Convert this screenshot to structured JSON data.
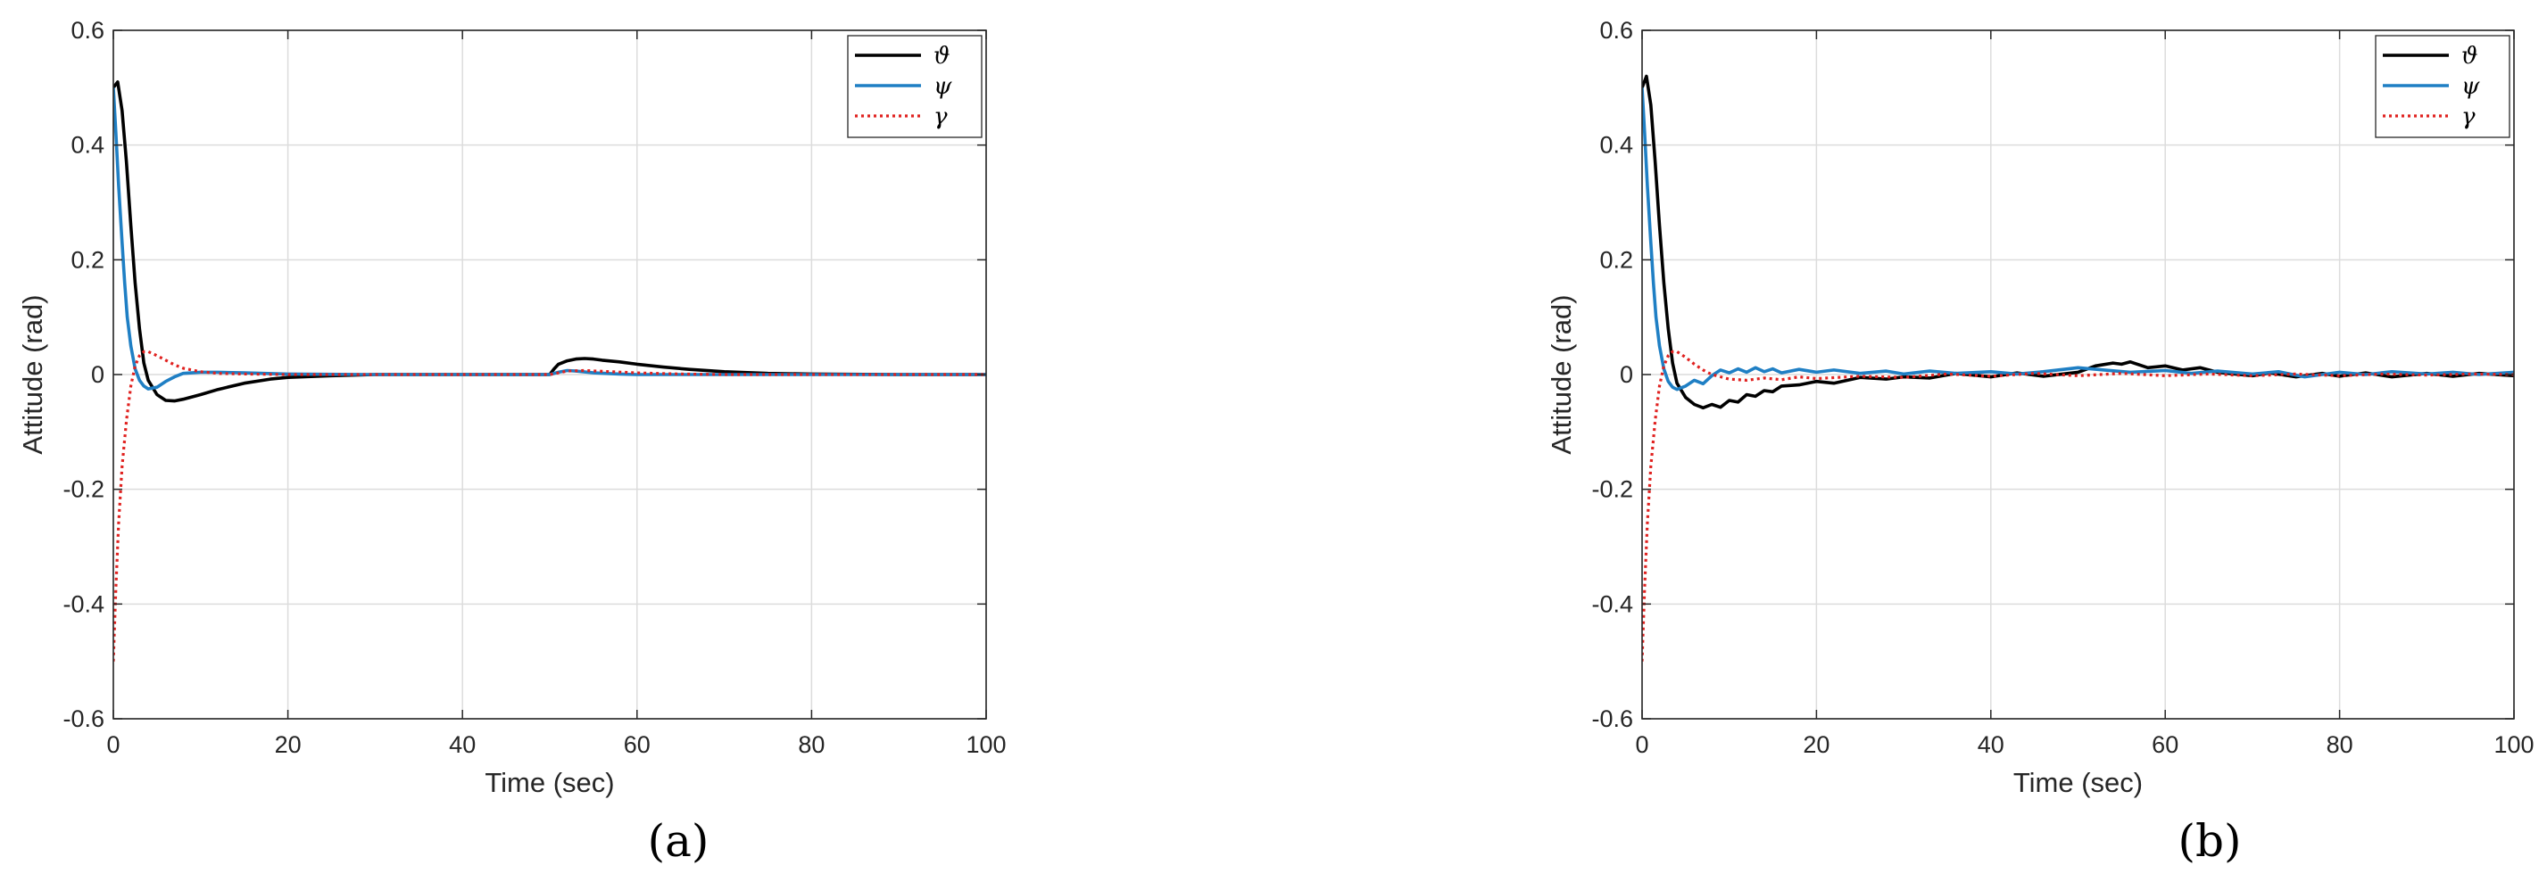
{
  "chart_data": [
    {
      "type": "line",
      "panel_label": "(a)",
      "xlabel": "Time (sec)",
      "ylabel": "Attitude (rad)",
      "xlim": [
        0,
        100
      ],
      "ylim": [
        -0.6,
        0.6
      ],
      "xticks": [
        0,
        20,
        40,
        60,
        80,
        100
      ],
      "yticks": [
        -0.6,
        -0.4,
        -0.2,
        0,
        0.2,
        0.4,
        0.6
      ],
      "xtick_labels": [
        "0",
        "20",
        "40",
        "60",
        "80",
        "100"
      ],
      "ytick_labels": [
        "-0.6",
        "-0.4",
        "-0.2",
        "0",
        "0.2",
        "0.4",
        "0.6"
      ],
      "grid": true,
      "legend_position": "top-right",
      "series": [
        {
          "name": "ϑ",
          "color": "#000000",
          "style": "solid",
          "x": [
            0,
            0.5,
            1,
            1.5,
            2,
            2.5,
            3,
            3.5,
            4,
            5,
            6,
            7,
            8,
            10,
            12,
            15,
            18,
            20,
            25,
            30,
            40,
            50,
            50.5,
            51,
            52,
            53,
            54,
            55,
            56,
            58,
            60,
            63,
            66,
            70,
            75,
            80,
            90,
            100
          ],
          "y": [
            0.5,
            0.51,
            0.46,
            0.37,
            0.26,
            0.16,
            0.08,
            0.02,
            -0.01,
            -0.035,
            -0.045,
            -0.046,
            -0.043,
            -0.035,
            -0.026,
            -0.015,
            -0.008,
            -0.005,
            -0.002,
            0,
            0,
            0,
            0.01,
            0.018,
            0.024,
            0.027,
            0.028,
            0.027,
            0.025,
            0.022,
            0.018,
            0.013,
            0.009,
            0.005,
            0.002,
            0.001,
            0,
            0
          ]
        },
        {
          "name": "ψ",
          "color": "#1f7fc4",
          "style": "solid",
          "x": [
            0,
            0.3,
            0.6,
            1,
            1.3,
            1.6,
            2,
            2.5,
            3,
            3.5,
            4,
            5,
            6,
            7,
            8,
            10,
            12,
            15,
            20,
            30,
            50,
            51,
            52,
            53,
            55,
            58,
            60,
            70,
            100
          ],
          "y": [
            0.5,
            0.42,
            0.33,
            0.23,
            0.16,
            0.1,
            0.05,
            0.01,
            -0.01,
            -0.02,
            -0.025,
            -0.022,
            -0.012,
            -0.004,
            0.002,
            0.004,
            0.004,
            0.003,
            0.001,
            0,
            0,
            0.004,
            0.007,
            0.006,
            0.003,
            0.001,
            0,
            0,
            0
          ]
        },
        {
          "name": "γ",
          "color": "#e0211f",
          "style": "dotted",
          "x": [
            0,
            0.3,
            0.6,
            1,
            1.5,
            2,
            2.5,
            3,
            3.5,
            4,
            5,
            6,
            7,
            8,
            10,
            12,
            15,
            20,
            30,
            50,
            51,
            52,
            54,
            57,
            60,
            65,
            70,
            100
          ],
          "y": [
            -0.5,
            -0.37,
            -0.26,
            -0.16,
            -0.08,
            -0.02,
            0.015,
            0.033,
            0.04,
            0.04,
            0.033,
            0.025,
            0.017,
            0.011,
            0.005,
            0.002,
            0.001,
            0,
            0,
            0,
            0.003,
            0.006,
            0.007,
            0.005,
            0.003,
            0.001,
            0,
            0
          ]
        }
      ]
    },
    {
      "type": "line",
      "panel_label": "(b)",
      "xlabel": "Time (sec)",
      "ylabel": "Attitude (rad)",
      "xlim": [
        0,
        100
      ],
      "ylim": [
        -0.6,
        0.6
      ],
      "xticks": [
        0,
        20,
        40,
        60,
        80,
        100
      ],
      "yticks": [
        -0.6,
        -0.4,
        -0.2,
        0,
        0.2,
        0.4,
        0.6
      ],
      "xtick_labels": [
        "0",
        "20",
        "40",
        "60",
        "80",
        "100"
      ],
      "ytick_labels": [
        "-0.6",
        "-0.4",
        "-0.2",
        "0",
        "0.2",
        "0.4",
        "0.6"
      ],
      "grid": true,
      "legend_position": "top-right",
      "series": [
        {
          "name": "ϑ",
          "color": "#000000",
          "style": "solid",
          "x": [
            0,
            0.5,
            1,
            1.5,
            2,
            2.5,
            3,
            3.5,
            4,
            5,
            6,
            7,
            8,
            9,
            10,
            11,
            12,
            13,
            14,
            15,
            16,
            18,
            20,
            22,
            25,
            28,
            30,
            33,
            36,
            40,
            43,
            46,
            50,
            52,
            54,
            55,
            56,
            58,
            60,
            62,
            64,
            66,
            70,
            72,
            75,
            78,
            80,
            83,
            86,
            90,
            93,
            96,
            100
          ],
          "y": [
            0.5,
            0.52,
            0.47,
            0.37,
            0.26,
            0.16,
            0.08,
            0.02,
            -0.015,
            -0.04,
            -0.052,
            -0.058,
            -0.052,
            -0.057,
            -0.045,
            -0.048,
            -0.035,
            -0.038,
            -0.028,
            -0.03,
            -0.02,
            -0.018,
            -0.012,
            -0.015,
            -0.005,
            -0.008,
            -0.004,
            -0.006,
            0.002,
            -0.004,
            0.003,
            -0.003,
            0.004,
            0.015,
            0.02,
            0.018,
            0.022,
            0.012,
            0.015,
            0.008,
            0.012,
            0.004,
            -0.002,
            0.003,
            -0.004,
            0.002,
            -0.003,
            0.003,
            -0.004,
            0.002,
            -0.003,
            0.002,
            -0.002
          ]
        },
        {
          "name": "ψ",
          "color": "#1f7fc4",
          "style": "solid",
          "x": [
            0,
            0.3,
            0.6,
            1,
            1.3,
            1.6,
            2,
            2.5,
            3,
            3.5,
            4,
            5,
            6,
            7,
            8,
            9,
            10,
            11,
            12,
            13,
            14,
            15,
            16,
            18,
            20,
            22,
            25,
            28,
            30,
            33,
            36,
            40,
            43,
            46,
            50,
            53,
            56,
            60,
            63,
            66,
            70,
            73,
            76,
            80,
            83,
            86,
            90,
            93,
            96,
            100
          ],
          "y": [
            0.5,
            0.42,
            0.33,
            0.23,
            0.16,
            0.1,
            0.05,
            0.01,
            -0.012,
            -0.022,
            -0.026,
            -0.02,
            -0.01,
            -0.016,
            -0.002,
            0.008,
            0.003,
            0.01,
            0.004,
            0.012,
            0.005,
            0.01,
            0.003,
            0.009,
            0.004,
            0.008,
            0.002,
            0.006,
            0.001,
            0.006,
            0.002,
            0.005,
            0.001,
            0.005,
            0.012,
            0.008,
            0.004,
            0.007,
            0.002,
            0.006,
            0.001,
            0.005,
            -0.004,
            0.004,
            0,
            0.005,
            0.001,
            0.004,
            0,
            0.004
          ]
        },
        {
          "name": "γ",
          "color": "#e0211f",
          "style": "dotted",
          "x": [
            0,
            0.3,
            0.6,
            1,
            1.5,
            2,
            2.5,
            3,
            3.5,
            4,
            5,
            6,
            7,
            8,
            10,
            12,
            14,
            16,
            18,
            20,
            25,
            30,
            35,
            40,
            45,
            50,
            55,
            60,
            65,
            70,
            75,
            80,
            85,
            90,
            95,
            100
          ],
          "y": [
            -0.5,
            -0.37,
            -0.26,
            -0.16,
            -0.08,
            -0.02,
            0.015,
            0.033,
            0.04,
            0.04,
            0.03,
            0.018,
            0.008,
            0,
            -0.008,
            -0.01,
            -0.006,
            -0.009,
            -0.004,
            -0.007,
            -0.003,
            -0.005,
            0.001,
            -0.003,
            0.002,
            -0.002,
            0.002,
            -0.002,
            0.001,
            -0.002,
            0.001,
            -0.002,
            0.001,
            -0.001,
            0.001,
            0
          ]
        }
      ]
    }
  ]
}
